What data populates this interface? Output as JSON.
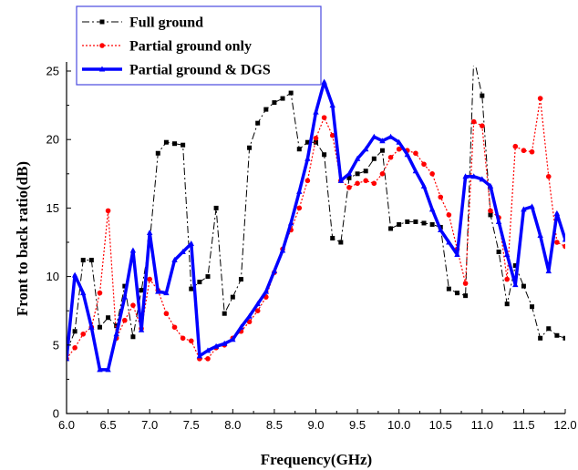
{
  "chart_data": {
    "type": "line",
    "title": "",
    "xlabel": "Frequency(GHz)",
    "ylabel": "Front to back ratio(dB)",
    "xlim": [
      6.0,
      12.0
    ],
    "ylim": [
      0,
      25
    ],
    "xticks": [
      "6.0",
      "6.5",
      "7.0",
      "7.5",
      "8.0",
      "8.5",
      "9.0",
      "9.5",
      "10.0",
      "10.5",
      "11.0",
      "11.5",
      "12.0"
    ],
    "yticks": [
      "0",
      "5",
      "10",
      "15",
      "20",
      "25"
    ],
    "legend_position": "top-left",
    "grid": false,
    "series": [
      {
        "name": "Full ground",
        "color": "#000000",
        "style": "dash-dot",
        "marker": "square",
        "x": [
          6.0,
          6.1,
          6.2,
          6.3,
          6.4,
          6.5,
          6.6,
          6.7,
          6.8,
          6.9,
          7.0,
          7.1,
          7.2,
          7.3,
          7.4,
          7.5,
          7.6,
          7.7,
          7.8,
          7.9,
          8.0,
          8.1,
          8.2,
          8.3,
          8.4,
          8.5,
          8.6,
          8.7,
          8.8,
          8.9,
          9.0,
          9.1,
          9.2,
          9.3,
          9.4,
          9.5,
          9.6,
          9.7,
          9.8,
          9.9,
          10.0,
          10.1,
          10.2,
          10.3,
          10.4,
          10.5,
          10.6,
          10.7,
          10.8,
          10.9,
          11.0,
          11.1,
          11.2,
          11.3,
          11.4,
          11.5,
          11.6,
          11.7,
          11.8,
          11.9,
          12.0
        ],
        "y": [
          4.5,
          6.0,
          11.2,
          11.2,
          6.3,
          7.0,
          6.4,
          9.3,
          5.6,
          9.0,
          12.5,
          19.0,
          19.8,
          19.7,
          19.6,
          9.1,
          9.6,
          10.0,
          15.0,
          7.3,
          8.5,
          9.8,
          19.4,
          21.2,
          22.2,
          22.7,
          23.0,
          23.4,
          19.3,
          19.8,
          19.8,
          18.9,
          12.8,
          12.5,
          17.2,
          17.5,
          17.7,
          18.6,
          19.2,
          13.5,
          13.8,
          14.0,
          14.0,
          13.9,
          13.8,
          13.6,
          9.1,
          8.8,
          8.6,
          26.0,
          23.2,
          14.5,
          11.8,
          8.0,
          10.8,
          9.3,
          7.8,
          5.5,
          6.2,
          5.7,
          5.5
        ]
      },
      {
        "name": "Partial ground only",
        "color": "#ff0000",
        "style": "dotted",
        "marker": "circle",
        "x": [
          6.0,
          6.1,
          6.2,
          6.3,
          6.4,
          6.5,
          6.6,
          6.7,
          6.8,
          6.9,
          7.0,
          7.1,
          7.2,
          7.3,
          7.4,
          7.5,
          7.6,
          7.7,
          7.8,
          7.9,
          8.0,
          8.1,
          8.2,
          8.3,
          8.4,
          8.5,
          8.6,
          8.7,
          8.8,
          8.9,
          9.0,
          9.1,
          9.2,
          9.3,
          9.4,
          9.5,
          9.6,
          9.7,
          9.8,
          9.9,
          10.0,
          10.1,
          10.2,
          10.3,
          10.4,
          10.5,
          10.6,
          10.7,
          10.8,
          10.9,
          11.0,
          11.1,
          11.2,
          11.3,
          11.4,
          11.5,
          11.6,
          11.7,
          11.8,
          11.9,
          12.0
        ],
        "y": [
          4.0,
          4.8,
          5.8,
          6.3,
          8.8,
          14.8,
          5.5,
          6.8,
          7.9,
          6.2,
          9.8,
          9.0,
          7.3,
          6.3,
          5.5,
          5.3,
          4.0,
          4.0,
          4.8,
          5.0,
          5.5,
          6.0,
          6.7,
          7.5,
          8.5,
          10.3,
          12.0,
          13.4,
          15.0,
          17.0,
          20.1,
          21.6,
          20.3,
          17.0,
          16.5,
          16.8,
          17.0,
          16.8,
          17.5,
          18.7,
          19.3,
          19.2,
          19.0,
          18.2,
          17.5,
          15.8,
          14.5,
          12.0,
          9.5,
          21.3,
          21.0,
          14.8,
          14.3,
          9.8,
          19.5,
          19.2,
          19.1,
          23.0,
          17.3,
          12.5,
          12.2
        ]
      },
      {
        "name": "Partial ground & DGS",
        "color": "#0000ff",
        "style": "solid",
        "marker": "triangle",
        "x": [
          6.0,
          6.1,
          6.2,
          6.3,
          6.4,
          6.5,
          6.6,
          6.7,
          6.8,
          6.9,
          7.0,
          7.1,
          7.2,
          7.3,
          7.4,
          7.5,
          7.6,
          7.7,
          7.8,
          7.9,
          8.0,
          8.1,
          8.2,
          8.3,
          8.4,
          8.5,
          8.6,
          8.7,
          8.8,
          8.9,
          9.0,
          9.1,
          9.2,
          9.3,
          9.4,
          9.5,
          9.6,
          9.7,
          9.8,
          9.9,
          10.0,
          10.1,
          10.2,
          10.3,
          10.4,
          10.5,
          10.6,
          10.7,
          10.8,
          10.9,
          11.0,
          11.1,
          11.2,
          11.3,
          11.4,
          11.5,
          11.6,
          11.7,
          11.8,
          11.9,
          12.0
        ],
        "y": [
          4.0,
          10.1,
          8.8,
          6.3,
          3.2,
          3.2,
          5.8,
          8.5,
          11.9,
          6.1,
          13.2,
          8.9,
          8.8,
          11.2,
          11.8,
          12.4,
          4.2,
          4.6,
          4.9,
          5.1,
          5.4,
          6.3,
          7.1,
          8.0,
          8.9,
          10.4,
          11.9,
          13.9,
          16.2,
          18.6,
          22.0,
          24.2,
          22.5,
          17.0,
          17.5,
          18.6,
          19.3,
          20.2,
          19.9,
          20.2,
          19.8,
          18.9,
          17.7,
          16.6,
          14.9,
          13.4,
          12.5,
          11.6,
          17.3,
          17.3,
          17.1,
          16.6,
          14.0,
          11.6,
          9.4,
          14.9,
          15.1,
          13.0,
          10.4,
          14.6,
          12.7
        ]
      }
    ]
  }
}
